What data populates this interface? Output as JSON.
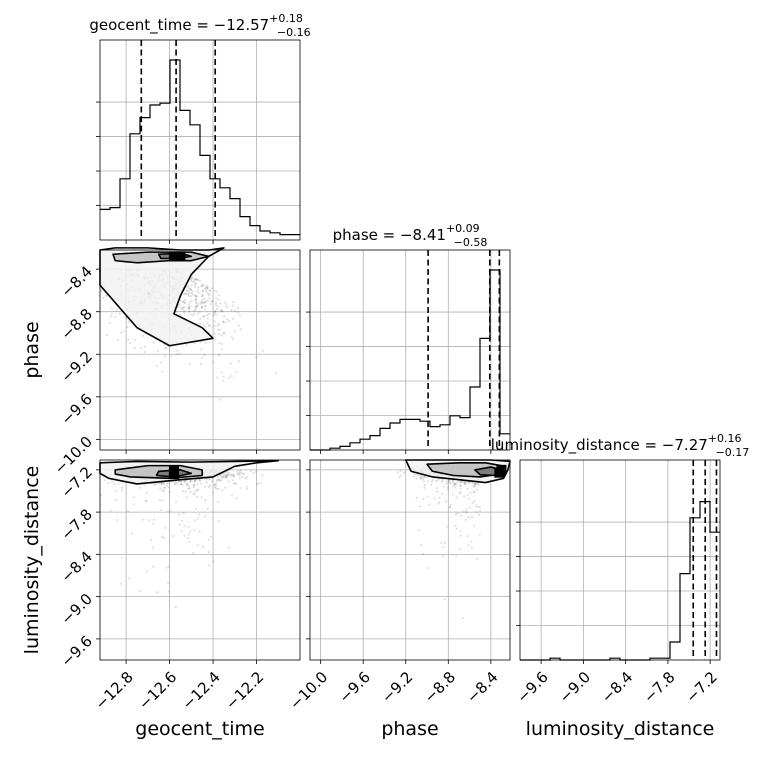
{
  "chart_data": {
    "type": "corner",
    "parameters": [
      "geocent_time",
      "phase",
      "luminosity_distance"
    ],
    "ranges": {
      "geocent_time": [
        -12.92,
        -12.0
      ],
      "phase": [
        -10.1,
        -8.22
      ],
      "luminosity_distance": [
        -9.9,
        -7.06
      ]
    },
    "grid": true,
    "titles": [
      {
        "param": "geocent_time",
        "name": "geocent_time",
        "value": "−12.57",
        "plus": "+0.18",
        "minus": "−0.16"
      },
      {
        "param": "phase",
        "name": "phase",
        "value": "−8.41",
        "plus": "+0.09",
        "minus": "−0.58"
      },
      {
        "param": "luminosity_distance",
        "name": "luminosity_distance",
        "value": "−7.27",
        "plus": "+0.16",
        "minus": "−0.17"
      }
    ],
    "ticks": {
      "geocent_time": {
        "values": [
          -12.8,
          -12.6,
          -12.4,
          -12.2
        ],
        "labels": [
          "−12.8",
          "−12.6",
          "−12.4",
          "−12.2"
        ]
      },
      "phase": {
        "values": [
          -10.0,
          -9.6,
          -9.2,
          -8.8,
          -8.4
        ],
        "labels": [
          "−10.0",
          "−9.6",
          "−9.2",
          "−8.8",
          "−8.4"
        ]
      },
      "luminosity_distance_y": {
        "values": [
          -9.6,
          -9.0,
          -8.4,
          -7.8,
          -7.2
        ],
        "labels": [
          "−9.6",
          "−9.0",
          "−8.4",
          "−7.8",
          "−7.2"
        ]
      },
      "luminosity_distance_x": {
        "values": [
          -9.6,
          -9.0,
          -8.4,
          -7.8,
          -7.2
        ],
        "labels": [
          "−9.6",
          "−9.0",
          "−8.4",
          "−7.8",
          "−7.2"
        ]
      }
    },
    "histograms": [
      {
        "param": "geocent_time",
        "bin_start": -12.92,
        "bin_width": 0.046,
        "counts": [
          0.17,
          0.18,
          0.34,
          0.59,
          0.68,
          0.75,
          0.76,
          1.0,
          0.72,
          0.64,
          0.47,
          0.34,
          0.29,
          0.23,
          0.13,
          0.08,
          0.05,
          0.04,
          0.03,
          0.03
        ],
        "quantiles": [
          -12.73,
          -12.57,
          -12.39
        ]
      },
      {
        "param": "phase",
        "bin_start": -10.1,
        "bin_width": 0.094,
        "counts": [
          0.0,
          0.0,
          0.01,
          0.02,
          0.04,
          0.06,
          0.08,
          0.12,
          0.15,
          0.17,
          0.17,
          0.16,
          0.13,
          0.14,
          0.19,
          0.18,
          0.35,
          0.62,
          1.0,
          0.09
        ],
        "quantiles": [
          -8.99,
          -8.41,
          -8.32
        ]
      },
      {
        "param": "luminosity_distance",
        "bin_start": -9.9,
        "bin_width": 0.142,
        "counts": [
          0.0,
          0.0,
          0.0,
          0.01,
          0.0,
          0.0,
          0.0,
          0.0,
          0.0,
          0.01,
          0.0,
          0.0,
          0.0,
          0.01,
          0.01,
          0.1,
          0.48,
          0.79,
          0.88,
          0.71
        ],
        "quantiles": [
          -7.44,
          -7.27,
          -7.11
        ]
      }
    ],
    "contours": [
      {
        "x": "geocent_time",
        "y": "phase",
        "hotspots": [
          {
            "x": -12.58,
            "y": -8.28
          },
          {
            "x": -12.55,
            "y": -8.28
          }
        ],
        "levels": [
          [
            [
              -12.92,
              -8.22
            ],
            [
              -12.85,
              -8.2
            ],
            [
              -12.7,
              -8.2
            ],
            [
              -12.55,
              -8.22
            ],
            [
              -12.42,
              -8.22
            ],
            [
              -12.35,
              -8.2
            ],
            [
              -12.42,
              -8.28
            ],
            [
              -12.5,
              -8.45
            ],
            [
              -12.55,
              -8.65
            ],
            [
              -12.58,
              -8.82
            ],
            [
              -12.45,
              -8.95
            ],
            [
              -12.4,
              -9.05
            ],
            [
              -12.6,
              -9.12
            ],
            [
              -12.75,
              -8.95
            ],
            [
              -12.92,
              -8.55
            ]
          ],
          [
            [
              -12.86,
              -8.26
            ],
            [
              -12.7,
              -8.24
            ],
            [
              -12.5,
              -8.24
            ],
            [
              -12.42,
              -8.28
            ],
            [
              -12.5,
              -8.32
            ],
            [
              -12.6,
              -8.32
            ],
            [
              -12.75,
              -8.34
            ],
            [
              -12.85,
              -8.32
            ]
          ],
          [
            [
              -12.65,
              -8.26
            ],
            [
              -12.55,
              -8.25
            ],
            [
              -12.5,
              -8.28
            ],
            [
              -12.57,
              -8.3
            ],
            [
              -12.64,
              -8.3
            ]
          ]
        ]
      },
      {
        "x": "geocent_time",
        "y": "luminosity_distance",
        "hotspots": [
          {
            "x": -12.58,
            "y": -7.26
          },
          {
            "x": -12.58,
            "y": -7.22
          }
        ],
        "levels": [
          [
            [
              -12.92,
              -7.1
            ],
            [
              -12.75,
              -7.08
            ],
            [
              -12.5,
              -7.09
            ],
            [
              -12.3,
              -7.08
            ],
            [
              -12.1,
              -7.07
            ],
            [
              -12.2,
              -7.1
            ],
            [
              -12.3,
              -7.15
            ],
            [
              -12.4,
              -7.3
            ],
            [
              -12.55,
              -7.34
            ],
            [
              -12.75,
              -7.4
            ],
            [
              -12.88,
              -7.32
            ],
            [
              -12.92,
              -7.25
            ]
          ],
          [
            [
              -12.85,
              -7.2
            ],
            [
              -12.7,
              -7.14
            ],
            [
              -12.55,
              -7.14
            ],
            [
              -12.45,
              -7.2
            ],
            [
              -12.45,
              -7.28
            ],
            [
              -12.6,
              -7.32
            ],
            [
              -12.78,
              -7.3
            ],
            [
              -12.85,
              -7.26
            ]
          ],
          [
            [
              -12.65,
              -7.22
            ],
            [
              -12.55,
              -7.2
            ],
            [
              -12.5,
              -7.25
            ],
            [
              -12.58,
              -7.3
            ],
            [
              -12.66,
              -7.28
            ]
          ]
        ]
      },
      {
        "x": "phase",
        "y": "luminosity_distance",
        "hotspots": [
          {
            "x": -8.32,
            "y": -7.24
          },
          {
            "x": -8.3,
            "y": -7.2
          }
        ],
        "levels": [
          [
            [
              -9.2,
              -7.06
            ],
            [
              -8.8,
              -7.06
            ],
            [
              -8.4,
              -7.06
            ],
            [
              -8.22,
              -7.08
            ],
            [
              -8.24,
              -7.2
            ],
            [
              -8.28,
              -7.32
            ],
            [
              -8.45,
              -7.38
            ],
            [
              -8.7,
              -7.34
            ],
            [
              -8.95,
              -7.3
            ],
            [
              -9.15,
              -7.22
            ]
          ],
          [
            [
              -9.0,
              -7.12
            ],
            [
              -8.7,
              -7.1
            ],
            [
              -8.45,
              -7.1
            ],
            [
              -8.3,
              -7.14
            ],
            [
              -8.32,
              -7.26
            ],
            [
              -8.5,
              -7.3
            ],
            [
              -8.75,
              -7.28
            ],
            [
              -8.95,
              -7.22
            ]
          ],
          [
            [
              -8.55,
              -7.2
            ],
            [
              -8.4,
              -7.16
            ],
            [
              -8.3,
              -7.2
            ],
            [
              -8.35,
              -7.28
            ],
            [
              -8.5,
              -7.27
            ]
          ]
        ]
      }
    ],
    "xlabels": [
      "geocent_time",
      "phase",
      "luminosity_distance"
    ],
    "ylabels": [
      "phase",
      "luminosity_distance"
    ]
  }
}
